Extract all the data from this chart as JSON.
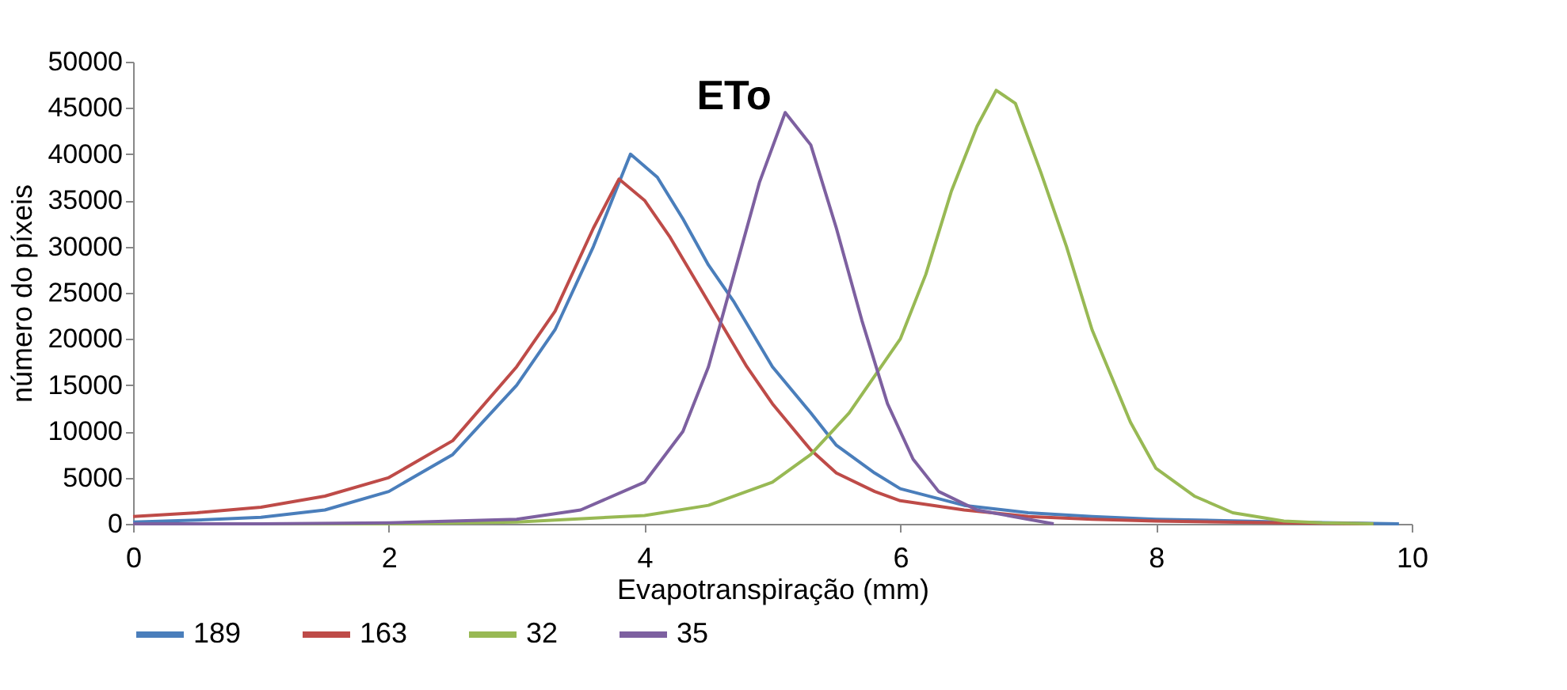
{
  "chart_data": {
    "type": "line",
    "title": "ETo",
    "xlabel": "Evapotranspiração (mm)",
    "ylabel": "número do píxeis",
    "xlim": [
      0,
      10
    ],
    "xticks": [
      0,
      2,
      4,
      6,
      8,
      10
    ],
    "ylim": [
      0,
      50000
    ],
    "yticks": [
      0,
      5000,
      10000,
      15000,
      20000,
      25000,
      30000,
      35000,
      40000,
      45000,
      50000
    ],
    "grid": false,
    "legend": "bottom",
    "marker": "none",
    "line_style": "solid",
    "series": [
      {
        "name": "189",
        "color": "#4a7ebb",
        "x": [
          0,
          0.5,
          1,
          1.5,
          2,
          2.5,
          3,
          3.3,
          3.6,
          3.89,
          4.1,
          4.3,
          4.5,
          4.7,
          5,
          5.3,
          5.5,
          5.8,
          6,
          6.5,
          7,
          7.5,
          8,
          9,
          9.9
        ],
        "values": [
          200,
          400,
          700,
          1500,
          3500,
          7500,
          15000,
          21000,
          30000,
          40000,
          37500,
          33000,
          28000,
          24000,
          17000,
          12000,
          8500,
          5500,
          3800,
          2000,
          1200,
          800,
          500,
          200,
          0
        ]
      },
      {
        "name": "163",
        "color": "#be4b48",
        "x": [
          0,
          0.5,
          1,
          1.5,
          2,
          2.5,
          3,
          3.3,
          3.6,
          3.8,
          4,
          4.2,
          4.5,
          4.8,
          5,
          5.3,
          5.5,
          5.8,
          6,
          6.5,
          7,
          7.5,
          8,
          9,
          9.7
        ],
        "values": [
          800,
          1200,
          1800,
          3000,
          5000,
          9000,
          17000,
          23000,
          32000,
          37300,
          35000,
          31000,
          24000,
          17000,
          13000,
          8000,
          5500,
          3500,
          2500,
          1500,
          800,
          500,
          300,
          100,
          0
        ]
      },
      {
        "name": "32",
        "color": "#98b954",
        "x": [
          0,
          2,
          3,
          4,
          4.5,
          5,
          5.3,
          5.6,
          6,
          6.2,
          6.4,
          6.6,
          6.75,
          6.9,
          7.1,
          7.3,
          7.5,
          7.8,
          8,
          8.3,
          8.6,
          9,
          9.3,
          9.7
        ],
        "values": [
          0,
          0,
          200,
          900,
          2000,
          4500,
          7500,
          12000,
          20000,
          27000,
          36000,
          43000,
          46900,
          45500,
          38000,
          30000,
          21000,
          11000,
          6000,
          3000,
          1200,
          300,
          100,
          0
        ]
      },
      {
        "name": "35",
        "color": "#7d60a0",
        "x": [
          0,
          1,
          2,
          3,
          3.5,
          4,
          4.3,
          4.5,
          4.7,
          4.9,
          5.1,
          5.3,
          5.5,
          5.7,
          5.9,
          6.1,
          6.3,
          6.6,
          7,
          7.2
        ],
        "values": [
          0,
          0,
          100,
          500,
          1500,
          4500,
          10000,
          17000,
          27000,
          37000,
          44500,
          41000,
          32000,
          22000,
          13000,
          7000,
          3500,
          1500,
          500,
          0
        ]
      }
    ]
  }
}
